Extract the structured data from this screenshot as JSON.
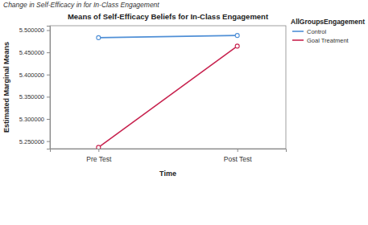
{
  "chart_data": {
    "type": "line",
    "title": "Means of Self-Efficacy Beliefs for In-Class Engagement",
    "annotations": [
      "Change in Self-Efficacy in for In-Class Engagement"
    ],
    "x_label": "Time",
    "y_label": "Estimated Marginal Means",
    "legend_title": "AllGroupsEngagement",
    "categories": [
      "Pre Test",
      "Post Test"
    ],
    "series": [
      {
        "name": "Control",
        "color": "#4f8fd6",
        "values": [
          5.483,
          5.488
        ],
        "marker": "circle",
        "line_style": "solid"
      },
      {
        "name": "Goal Treatment",
        "color": "#c8234f",
        "values": [
          5.236,
          5.464
        ],
        "marker": "circle",
        "line_style": "solid"
      }
    ],
    "ylim": [
      5.233,
      5.51
    ],
    "yticks": [
      {
        "value": 5.25,
        "label": "5.250000"
      },
      {
        "value": 5.3,
        "label": "5.300000"
      },
      {
        "value": 5.35,
        "label": "5.350000"
      },
      {
        "value": 5.4,
        "label": "5.400000"
      },
      {
        "value": 5.45,
        "label": "5.450000"
      },
      {
        "value": 5.5,
        "label": "5.500000"
      }
    ],
    "grid": false,
    "legend": "right"
  }
}
